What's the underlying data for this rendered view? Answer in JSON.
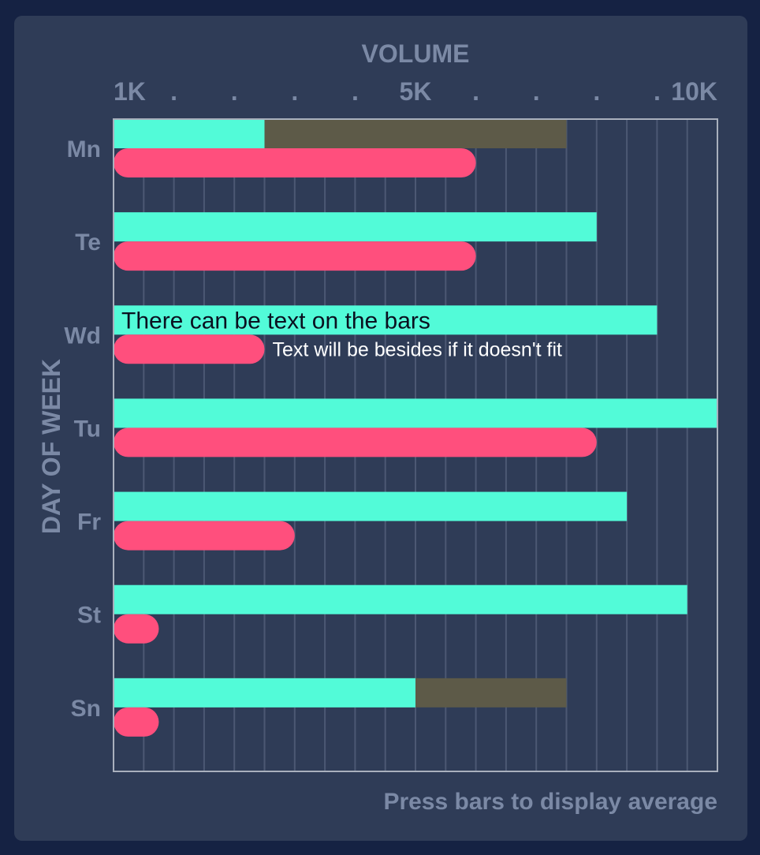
{
  "chart_data": {
    "type": "bar",
    "orientation": "horizontal",
    "title": "VOLUME",
    "xlabel": "VOLUME",
    "ylabel": "DAY OF WEEK",
    "footer": "Press bars to display average",
    "x_ticks": [
      "1K",
      ".",
      ".",
      ".",
      ".",
      "5K",
      ".",
      ".",
      ".",
      ".",
      "10K"
    ],
    "xlim": [
      0,
      10000
    ],
    "grid": true,
    "categories": [
      "Mn",
      "Te",
      "Wd",
      "Tu",
      "Fr",
      "St",
      "Sn"
    ],
    "series": [
      {
        "values": [
          2500,
          8000,
          9000,
          10000,
          8500,
          9500,
          5000
        ],
        "color": "#52fbd8"
      },
      {
        "values": [
          6000,
          6000,
          2500,
          8000,
          3000,
          750,
          750
        ],
        "color": "#ff4f7d"
      }
    ],
    "averages": [
      7500,
      null,
      null,
      null,
      null,
      null,
      7500
    ],
    "average_color": "#5d5a48",
    "annotations": [
      {
        "category": "Wd",
        "series": 0,
        "text": "There can be text on the bars"
      },
      {
        "category": "Wd",
        "series": 1,
        "text": "Text will be besides if it doesn't fit"
      }
    ]
  }
}
